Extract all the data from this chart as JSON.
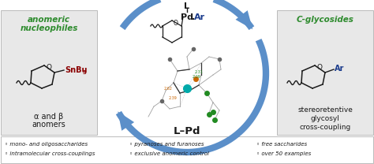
{
  "bg_color": "#ffffff",
  "white": "#ffffff",
  "light_gray_bg": "#f2f2f2",
  "green": "#2e8b2e",
  "dark_red": "#8B0000",
  "blue_arrow": "#5b8fc9",
  "dark_blue": "#1a3b8c",
  "black": "#1a1a1a",
  "gray_box": "#e8e8e8",
  "left_box": {
    "title_line1": "anomeric",
    "title_line2": "nucleophiles",
    "bottom_line1": "α and β",
    "bottom_line2": "anomers"
  },
  "right_box": {
    "title": "C-glycosides",
    "bottom_line1": "stereoretentive",
    "bottom_line2": "glycosyl",
    "bottom_line3": "cross-coupling"
  },
  "top_L": "L",
  "top_Pd": "Pd",
  "top_dot_Ar": "·Ar",
  "bottom_label": "L–Pd",
  "SnBu3": "SnBu",
  "SnBu3_sub": "3",
  "Ar_right": "Ar",
  "O_label": "O",
  "footer": [
    [
      "◦ mono- and oligosaccharides",
      "◦ pyranoses and furanoses",
      "◦ free saccharides"
    ],
    [
      "◦ intramolecular cross-couplings",
      "◦ exclusive anomeric control",
      "◦ over 50 examples"
    ]
  ],
  "fig_width": 4.74,
  "fig_height": 2.08,
  "dpi": 100
}
